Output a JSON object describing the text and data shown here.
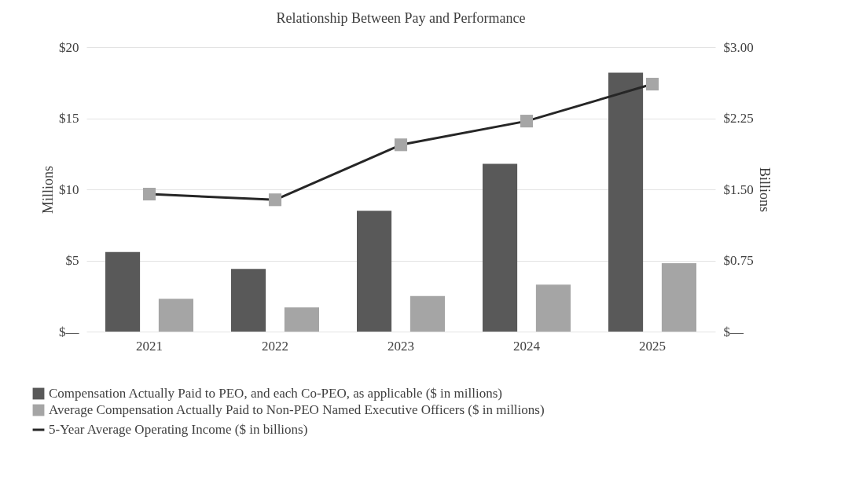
{
  "chart_data": {
    "type": "bar",
    "title": "Relationship Between Pay and Performance",
    "ylabel": "Millions",
    "y2label": "Billions",
    "categories": [
      "2021",
      "2022",
      "2023",
      "2024",
      "2025"
    ],
    "series": [
      {
        "name": "Compensation Actually Paid to PEO, and each Co-PEO, as applicable ($ in millions)",
        "color": "#595959",
        "values": [
          5.6,
          4.4,
          8.5,
          11.8,
          18.2
        ]
      },
      {
        "name": "Average Compensation Actually Paid to Non-PEO Named Executive Officers ($ in millions)",
        "color": "#a5a5a5",
        "values": [
          2.3,
          1.7,
          2.5,
          3.3,
          4.8
        ]
      },
      {
        "name": "5-Year Average Operating Income ($ in billions)",
        "type": "line",
        "axis": "y2",
        "color": "#262626",
        "values": [
          1.45,
          1.39,
          1.97,
          2.22,
          2.61
        ]
      }
    ],
    "ylim": [
      0,
      20
    ],
    "yticks": [
      {
        "value": 0,
        "label": "$—"
      },
      {
        "value": 5,
        "label": "$5"
      },
      {
        "value": 10,
        "label": "$10"
      },
      {
        "value": 15,
        "label": "$15"
      },
      {
        "value": 20,
        "label": "$20"
      }
    ],
    "y2lim": [
      0,
      3
    ],
    "y2ticks": [
      {
        "value": 0,
        "label": "$—"
      },
      {
        "value": 0.75,
        "label": "$0.75"
      },
      {
        "value": 1.5,
        "label": "$1.50"
      },
      {
        "value": 2.25,
        "label": "$2.25"
      },
      {
        "value": 3,
        "label": "$3.00"
      }
    ],
    "grid": "y",
    "legend": "bottom",
    "marker": "square",
    "line_style": "solid"
  }
}
